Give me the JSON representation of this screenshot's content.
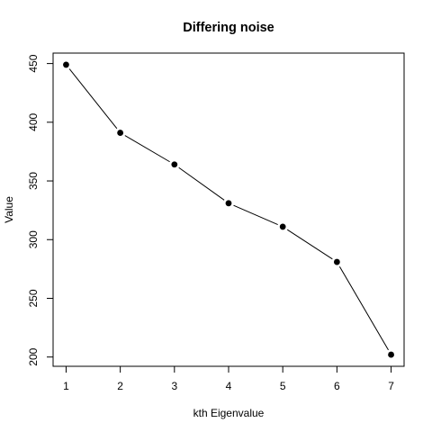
{
  "chart_data": {
    "type": "line",
    "title": "Differing noise",
    "xlabel": "kth Eigenvalue",
    "ylabel": "Value",
    "x": [
      1,
      2,
      3,
      4,
      5,
      6,
      7
    ],
    "y": [
      449,
      391,
      364,
      331,
      311,
      281,
      202
    ],
    "xlim": [
      0.76,
      7.24
    ],
    "ylim": [
      192.1,
      458.9
    ],
    "xticks": [
      1,
      2,
      3,
      4,
      5,
      6,
      7
    ],
    "yticks": [
      200,
      250,
      300,
      350,
      400,
      450
    ],
    "grid": false,
    "marker": "filled-circle",
    "line_color": "#000000",
    "marker_color": "#000000"
  }
}
